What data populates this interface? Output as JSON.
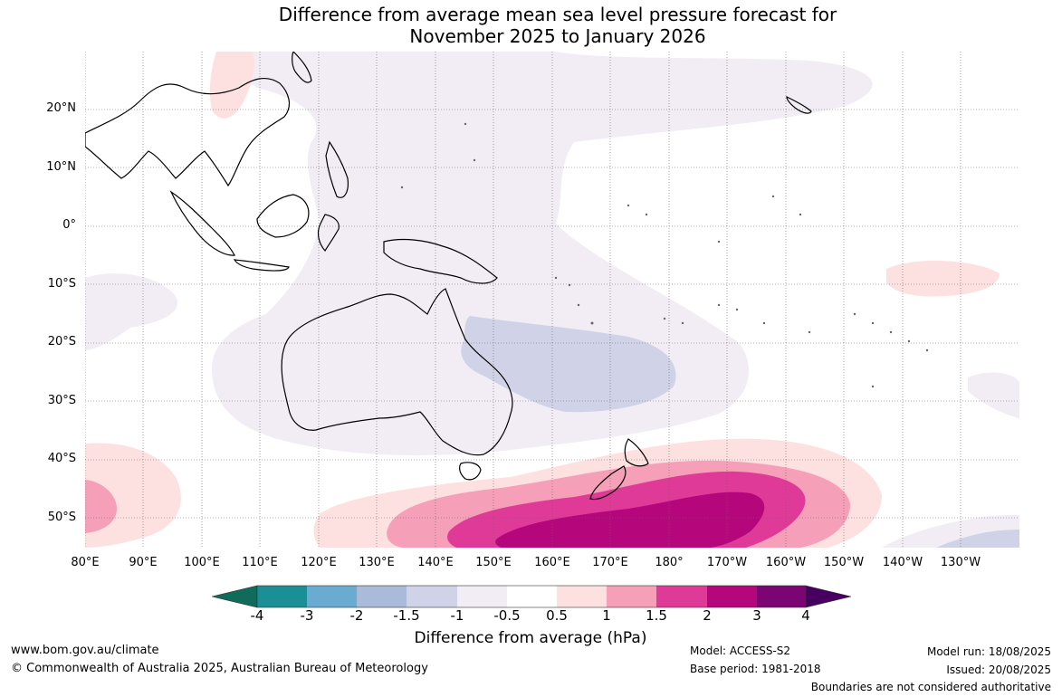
{
  "title_line1": "Difference from average mean sea level pressure forecast for",
  "title_line2": "November 2025 to January 2026",
  "latitude_labels": [
    "20°N",
    "10°N",
    "0°",
    "10°S",
    "20°S",
    "30°S",
    "40°S",
    "50°S"
  ],
  "longitude_labels": [
    "80°E",
    "90°E",
    "100°E",
    "110°E",
    "120°E",
    "130°E",
    "140°E",
    "150°E",
    "160°E",
    "170°E",
    "180°",
    "170°W",
    "160°W",
    "150°W",
    "140°W",
    "130°W"
  ],
  "colorbar": {
    "ticks": [
      "-4",
      "-3",
      "-2",
      "-1.5",
      "-1",
      "-0.5",
      "0.5",
      "1",
      "1.5",
      "2",
      "3",
      "4"
    ],
    "colors": [
      "#0f6b5a",
      "#1b8f96",
      "#6aabd2",
      "#a9bbd8",
      "#d0d3e7",
      "#f2edf5",
      "#ffffff",
      "#fde0e0",
      "#f59fb8",
      "#df3a98",
      "#b5067c",
      "#7b0573",
      "#480060"
    ],
    "title": "Difference from average (hPa)"
  },
  "footer": {
    "website": "www.bom.gov.au/climate",
    "copyright": "© Commonwealth of Australia 2025, Australian Bureau of Meteorology",
    "model": "Model: ACCESS-S2",
    "base_period": "Base period: 1981-2018",
    "model_run": "Model run: 18/08/2025",
    "issued": "Issued: 20/08/2025",
    "boundaries": "Boundaries are not considered authoritative"
  }
}
